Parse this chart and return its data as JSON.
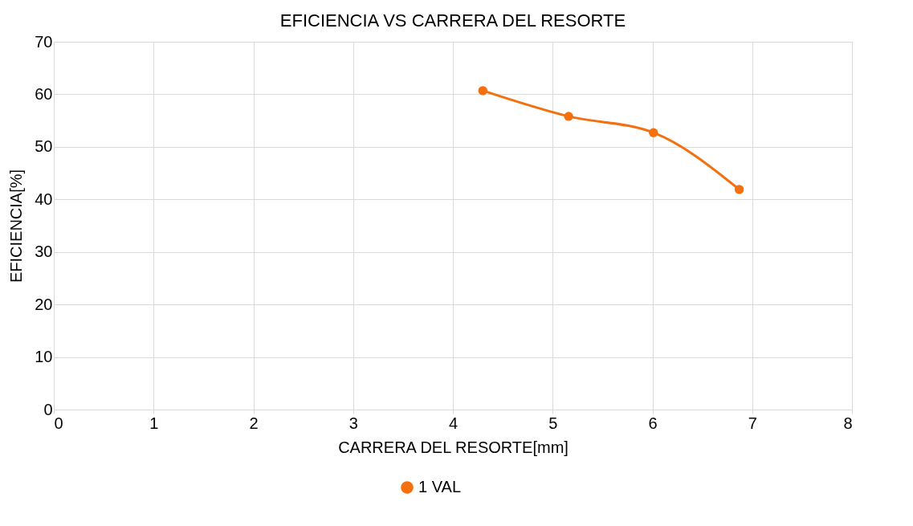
{
  "chart_data": {
    "type": "line",
    "title": "EFICIENCIA VS CARRERA DEL RESORTE",
    "xlabel": "CARRERA DEL RESORTE[mm]",
    "ylabel": "EFICIENCIA[%]",
    "x": [
      4.3,
      5.16,
      6.01,
      6.87
    ],
    "series": [
      {
        "name": "1 VAL",
        "color": "#f4700f",
        "values": [
          60.7,
          55.8,
          52.7,
          41.9
        ]
      }
    ],
    "xlim": [
      0,
      8
    ],
    "xticks": [
      0,
      1,
      2,
      3,
      4,
      5,
      6,
      7,
      8
    ],
    "ylim": [
      0,
      70
    ],
    "yticks": [
      0,
      10,
      20,
      30,
      40,
      50,
      60,
      70
    ],
    "grid": true,
    "legend": "bottom",
    "marker": "circle",
    "line_style": "solid"
  }
}
